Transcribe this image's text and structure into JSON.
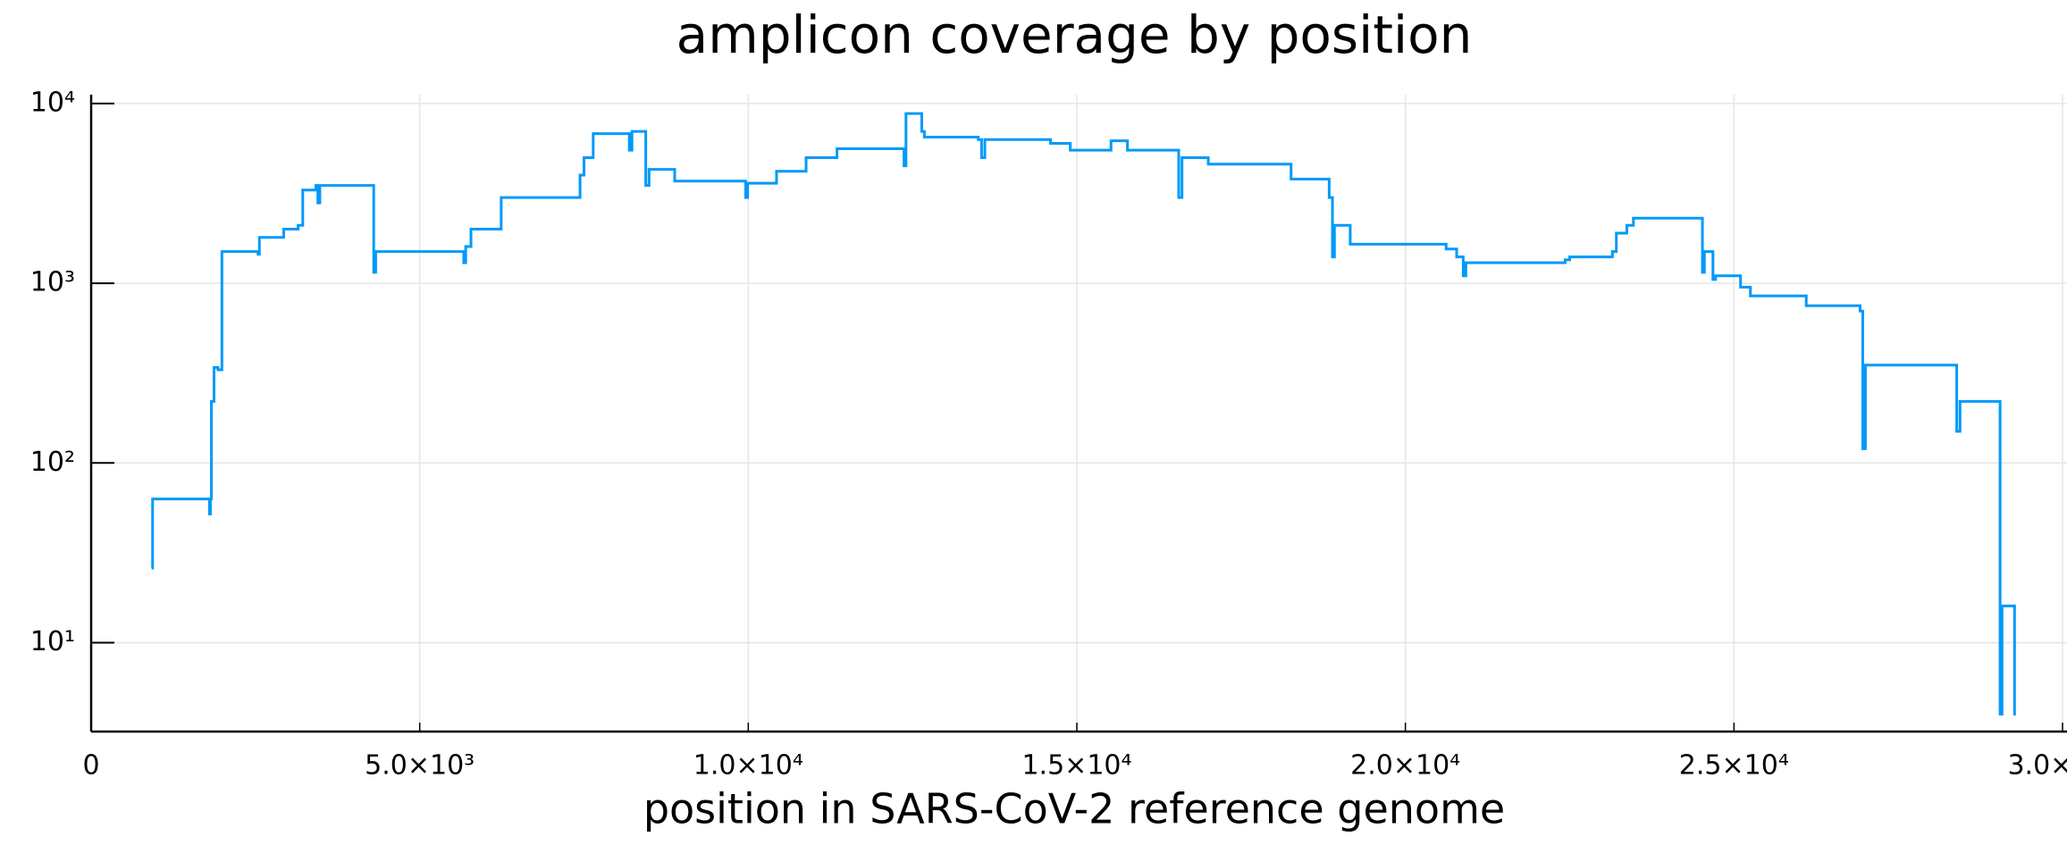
{
  "chart_data": {
    "type": "line",
    "title": "amplicon coverage by position",
    "x_label": "position in SARS-CoV-2 reference genome",
    "log_y": true,
    "grid": true,
    "color": "#009af9",
    "xlim": [
      0,
      30000
    ],
    "xticks": [
      0,
      {
        "value": 5000,
        "label": "5.0×10³"
      },
      {
        "value": 10000,
        "label": "1.0×10⁴"
      },
      {
        "value": 15000,
        "label": "1.5×10⁴"
      },
      {
        "value": 20000,
        "label": "2.0×10⁴"
      },
      {
        "value": 25000,
        "label": "2.5×10⁴"
      },
      {
        "value": 30000,
        "label": "3.0×10⁴"
      }
    ],
    "ylim": [
      3.2,
      11200
    ],
    "yticks": [
      {
        "value": 10,
        "label": "10¹"
      },
      {
        "value": 100,
        "label": "10²"
      },
      {
        "value": 1000,
        "label": "10³"
      },
      {
        "value": 10000,
        "label": "10⁴"
      }
    ],
    "x": [
      920,
      935,
      935,
      1800,
      1800,
      1815,
      1815,
      1830,
      1830,
      1870,
      1870,
      1930,
      1930,
      1990,
      1990,
      2540,
      2540,
      2560,
      2560,
      2930,
      2930,
      3150,
      3150,
      3220,
      3220,
      3420,
      3420,
      3450,
      3450,
      3480,
      3480,
      4300,
      4300,
      4330,
      4330,
      5670,
      5670,
      5700,
      5700,
      5780,
      5780,
      6240,
      6240,
      7440,
      7440,
      7500,
      7500,
      7640,
      7640,
      8190,
      8190,
      8230,
      8230,
      8440,
      8440,
      8490,
      8490,
      8880,
      8880,
      9960,
      9960,
      9990,
      9990,
      10430,
      10430,
      10880,
      10880,
      11350,
      11350,
      12370,
      12370,
      12400,
      12400,
      12640,
      12640,
      12680,
      12680,
      13500,
      13500,
      13550,
      13550,
      13600,
      13600,
      14600,
      14600,
      14900,
      14900,
      15520,
      15520,
      15770,
      15770,
      16550,
      16550,
      16600,
      16600,
      17000,
      17000,
      18260,
      18260,
      18840,
      18840,
      18890,
      18890,
      18920,
      18920,
      19160,
      19160,
      20620,
      20620,
      20780,
      20780,
      20880,
      20880,
      20920,
      20920,
      22430,
      22430,
      22500,
      22500,
      23150,
      23150,
      23210,
      23210,
      23370,
      23370,
      23470,
      23470,
      24520,
      24520,
      24550,
      24550,
      24680,
      24680,
      24720,
      24720,
      25100,
      25100,
      25250,
      25250,
      26100,
      26100,
      26920,
      26920,
      26960,
      26960,
      27000,
      27000,
      28390,
      28390,
      28440,
      28440,
      29050,
      29050,
      29080,
      29080,
      29270,
      29270,
      29290
    ],
    "values": [
      26,
      26,
      63,
      63,
      52,
      52,
      63,
      63,
      220,
      220,
      340,
      340,
      330,
      330,
      1500,
      1500,
      1450,
      1450,
      1800,
      1800,
      2000,
      2000,
      2100,
      2100,
      3300,
      3300,
      3500,
      3500,
      2800,
      2800,
      3500,
      3500,
      1150,
      1150,
      1500,
      1500,
      1300,
      1300,
      1600,
      1600,
      2000,
      2000,
      3000,
      3000,
      4000,
      4000,
      5000,
      5000,
      6800,
      6800,
      5500,
      5500,
      7000,
      7000,
      3500,
      3500,
      4300,
      4300,
      3700,
      3700,
      3000,
      3000,
      3600,
      3600,
      4200,
      4200,
      5000,
      5000,
      5600,
      5600,
      4500,
      4500,
      8800,
      8800,
      7000,
      7000,
      6500,
      6500,
      6300,
      6300,
      5000,
      5000,
      6300,
      6300,
      6000,
      6000,
      5500,
      5500,
      6200,
      6200,
      5500,
      5500,
      3000,
      3000,
      5000,
      5000,
      4600,
      4600,
      3800,
      3800,
      3000,
      3000,
      1400,
      1400,
      2100,
      2100,
      1650,
      1650,
      1550,
      1550,
      1400,
      1400,
      1100,
      1100,
      1300,
      1300,
      1350,
      1350,
      1400,
      1400,
      1500,
      1500,
      1900,
      1900,
      2100,
      2100,
      2300,
      2300,
      1150,
      1150,
      1500,
      1500,
      1050,
      1050,
      1100,
      1100,
      950,
      950,
      850,
      850,
      750,
      750,
      700,
      700,
      120,
      120,
      350,
      350,
      150,
      150,
      220,
      220,
      4,
      4,
      16,
      16,
      4,
      4
    ]
  }
}
